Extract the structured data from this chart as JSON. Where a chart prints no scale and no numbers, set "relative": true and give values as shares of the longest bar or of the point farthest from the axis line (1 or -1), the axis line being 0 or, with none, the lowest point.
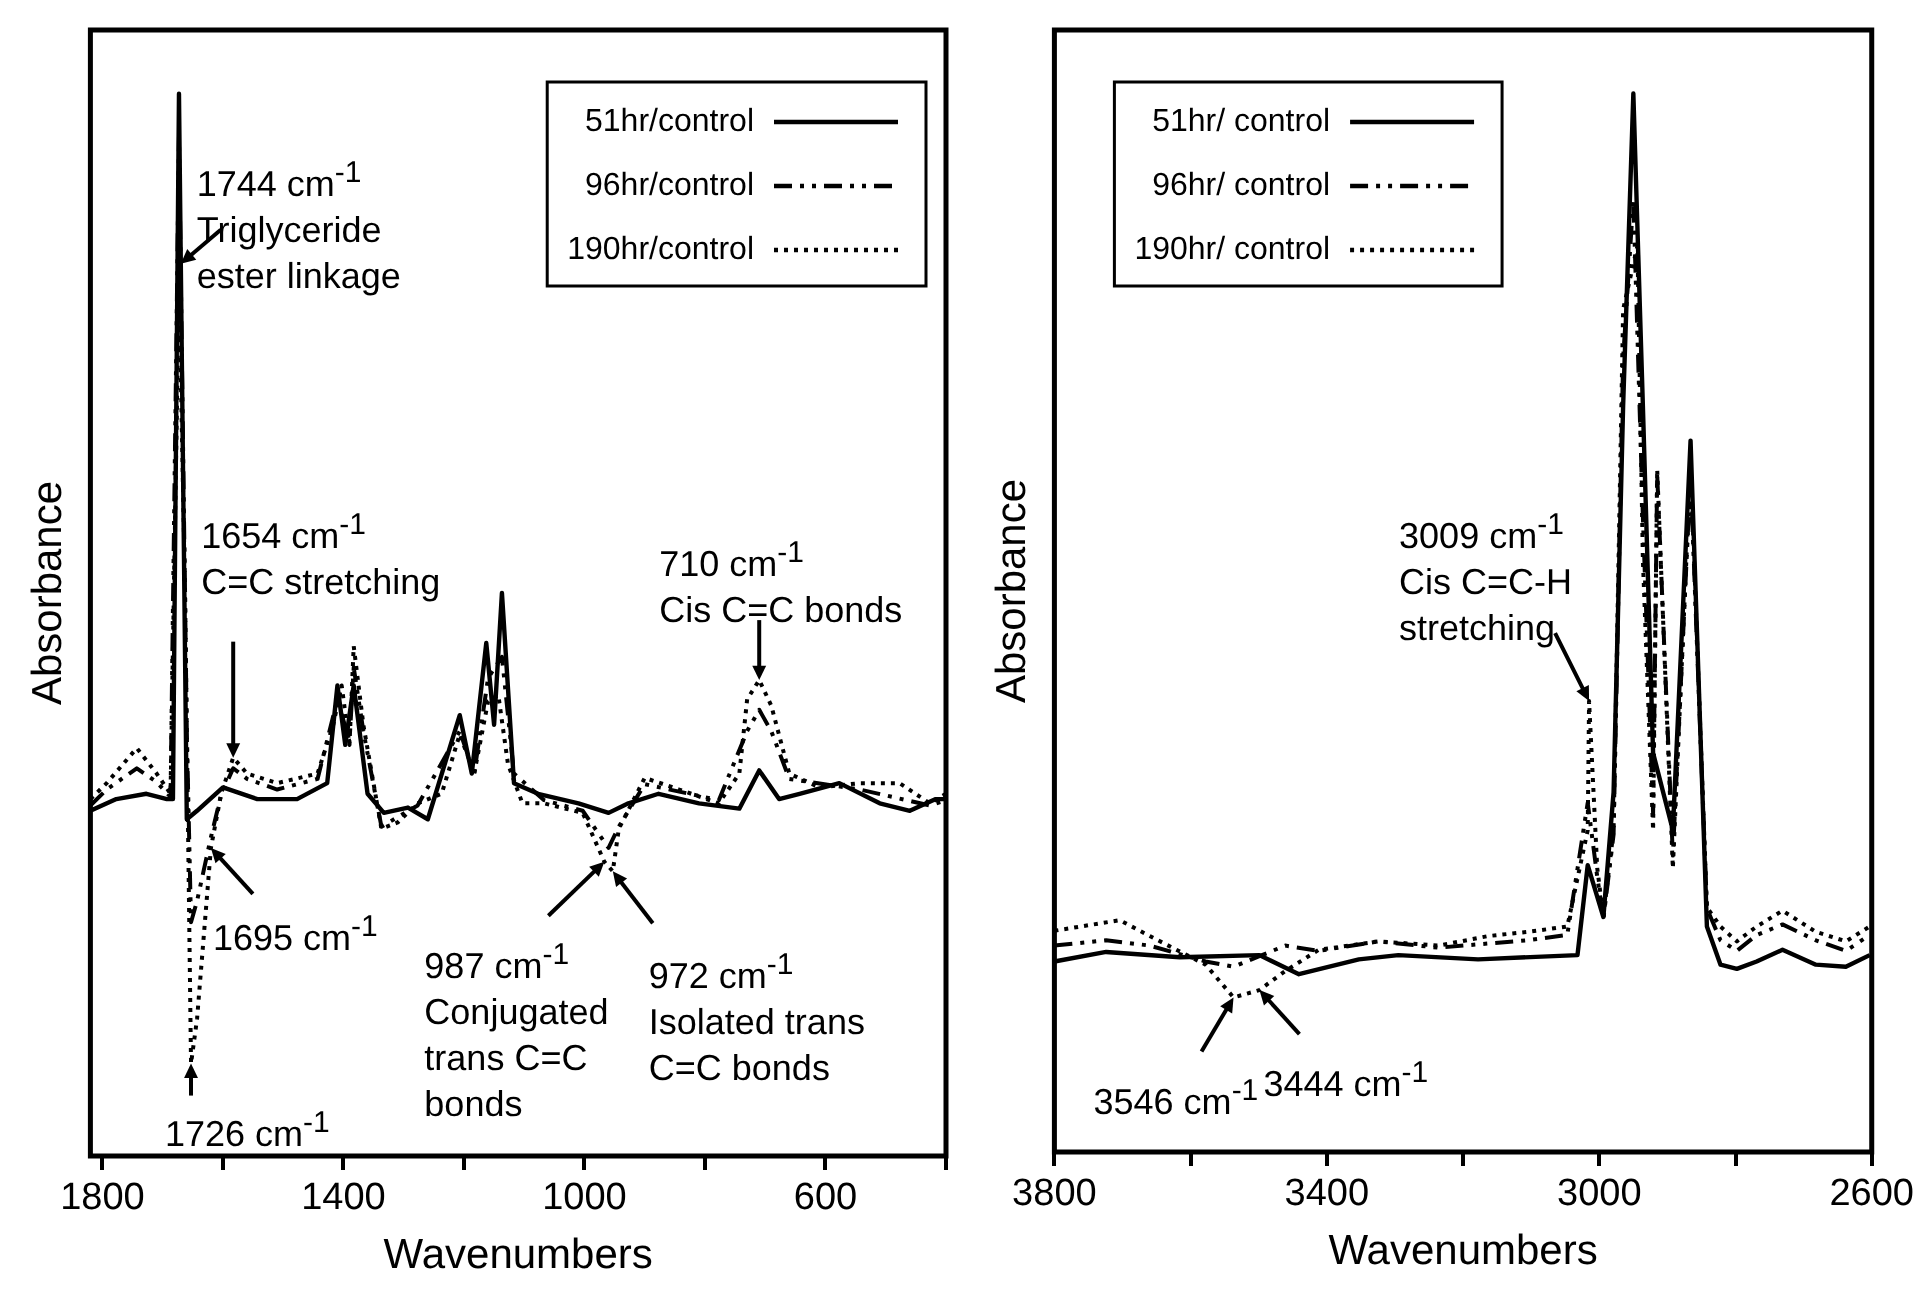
{
  "chart_data": [
    {
      "type": "line",
      "xlabel": "Wavenumbers",
      "ylabel": "Absorbance",
      "relative": true,
      "tick_labels": "x",
      "grid": false,
      "legend": "top right",
      "marker": "none",
      "xlim": [
        1820,
        400
      ],
      "xticks": [
        1800,
        {
          "value": 1600,
          "label": null
        },
        1400,
        {
          "value": 1200,
          "label": null
        },
        1000,
        {
          "value": 800,
          "label": null
        },
        600,
        {
          "value": 400,
          "label": null
        }
      ],
      "series": [
        {
          "name": "51hr/control",
          "color": "#000000",
          "line_style": "solid",
          "x": [
            1820,
            1777,
            1727,
            1693,
            1683,
            1673,
            1660,
            1643,
            1600,
            1543,
            1477,
            1427,
            1410,
            1397,
            1383,
            1360,
            1333,
            1293,
            1260,
            1207,
            1187,
            1163,
            1150,
            1137,
            1117,
            1077,
            1010,
            960,
            927,
            877,
            810,
            743,
            710,
            677,
            643,
            577,
            510,
            460,
            417,
            400
          ],
          "values": [
            0.325,
            0.336,
            0.341,
            0.336,
            0.336,
            1.0,
            0.317,
            0.325,
            0.347,
            0.336,
            0.336,
            0.351,
            0.443,
            0.387,
            0.443,
            0.341,
            0.323,
            0.328,
            0.317,
            0.415,
            0.36,
            0.483,
            0.406,
            0.53,
            0.351,
            0.341,
            0.332,
            0.323,
            0.332,
            0.341,
            0.332,
            0.327,
            0.363,
            0.336,
            0.341,
            0.351,
            0.332,
            0.325,
            0.336,
            0.336
          ]
        },
        {
          "name": "96hr/control",
          "color": "#000000",
          "line_style": "dashdot",
          "x": [
            1820,
            1793,
            1743,
            1710,
            1687,
            1673,
            1660,
            1653,
            1643,
            1620,
            1603,
            1583,
            1560,
            1510,
            1443,
            1410,
            1390,
            1383,
            1367,
            1337,
            1277,
            1207,
            1183,
            1160,
            1137,
            1117,
            1067,
            1003,
            960,
            943,
            900,
            777,
            730,
            710,
            690,
            660,
            543,
            427,
            400
          ],
          "values": [
            0.33,
            0.345,
            0.365,
            0.352,
            0.338,
            0.96,
            0.4,
            0.22,
            0.24,
            0.3,
            0.34,
            0.365,
            0.355,
            0.345,
            0.355,
            0.43,
            0.39,
            0.46,
            0.4,
            0.31,
            0.33,
            0.4,
            0.36,
            0.45,
            0.47,
            0.36,
            0.335,
            0.325,
            0.29,
            0.31,
            0.35,
            0.335,
            0.4,
            0.42,
            0.4,
            0.355,
            0.345,
            0.33,
            0.335
          ]
        },
        {
          "name": "190hr/control",
          "color": "#000000",
          "line_style": "dotted",
          "x": [
            1820,
            1793,
            1743,
            1710,
            1687,
            1673,
            1663,
            1653,
            1643,
            1620,
            1603,
            1583,
            1560,
            1510,
            1443,
            1417,
            1403,
            1390,
            1383,
            1367,
            1337,
            1310,
            1277,
            1237,
            1207,
            1183,
            1160,
            1143,
            1127,
            1103,
            1067,
            1003,
            967,
            953,
            943,
            900,
            843,
            777,
            743,
            730,
            710,
            690,
            660,
            610,
            543,
            477,
            427,
            400
          ],
          "values": [
            0.336,
            0.351,
            0.384,
            0.36,
            0.341,
            0.821,
            0.535,
            0.087,
            0.129,
            0.29,
            0.341,
            0.375,
            0.36,
            0.351,
            0.36,
            0.406,
            0.443,
            0.387,
            0.48,
            0.406,
            0.308,
            0.314,
            0.332,
            0.341,
            0.397,
            0.36,
            0.428,
            0.434,
            0.369,
            0.332,
            0.332,
            0.323,
            0.277,
            0.268,
            0.308,
            0.356,
            0.345,
            0.332,
            0.36,
            0.43,
            0.448,
            0.424,
            0.36,
            0.347,
            0.351,
            0.351,
            0.332,
            0.341
          ]
        }
      ],
      "annotations": [
        {
          "text": "1744 cm$^{-1}$ Triglyceride ester linkage",
          "x": 1670,
          "y": 0.84
        },
        {
          "text": "1654 cm$^{-1}$ C=C stretching",
          "x": 1583,
          "y": 0.375
        },
        {
          "text": "710 cm$^{-1}$ Cis C=C bonds",
          "x": 710,
          "y": 0.448
        },
        {
          "text": "1695 cm$^{-1}$",
          "x": 1620,
          "y": 0.29
        },
        {
          "text": "1726 cm$^{-1}$",
          "x": 1653,
          "y": 0.087
        },
        {
          "text": "987 cm$^{-1}$ Conjugated trans C=C bonds",
          "x": 967,
          "y": 0.277
        },
        {
          "text": "972 cm$^{-1}$ Isolated trans C=C bonds",
          "x": 953,
          "y": 0.268
        }
      ]
    },
    {
      "type": "line",
      "xlabel": "Wavenumbers",
      "ylabel": "Absorbance",
      "relative": true,
      "tick_labels": "x",
      "grid": false,
      "legend": "top left",
      "marker": "none",
      "xlim": [
        3800,
        2600
      ],
      "xticks": [
        3800,
        {
          "value": 3600,
          "label": null
        },
        3400,
        {
          "value": 3200,
          "label": null
        },
        3000,
        {
          "value": 2800,
          "label": null
        },
        2600
      ],
      "series": [
        {
          "name": "51hr/ control",
          "color": "#000000",
          "line_style": "solid",
          "x": [
            3800,
            3724,
            3616,
            3499,
            3441,
            3353,
            3295,
            3178,
            3032,
            3017,
            2994,
            2979,
            2965,
            2950,
            2936,
            2921,
            2892,
            2866,
            2842,
            2822,
            2798,
            2769,
            2731,
            2682,
            2638,
            2603
          ],
          "values": [
            0.18,
            0.189,
            0.184,
            0.186,
            0.168,
            0.182,
            0.186,
            0.182,
            0.186,
            0.271,
            0.222,
            0.34,
            0.705,
            1.0,
            0.705,
            0.377,
            0.304,
            0.672,
            0.213,
            0.177,
            0.173,
            0.18,
            0.191,
            0.177,
            0.175,
            0.186
          ]
        },
        {
          "name": "96hr/ control",
          "color": "#000000",
          "line_style": "dashdot",
          "x": [
            3800,
            3724,
            3660,
            3578,
            3537,
            3499,
            3461,
            3412,
            3324,
            3236,
            3163,
            3105,
            3047,
            3017,
            3003,
            2994,
            2979,
            2965,
            2950,
            2936,
            2921,
            2915,
            2892,
            2866,
            2842,
            2822,
            2798,
            2769,
            2731,
            2682,
            2638,
            2603
          ],
          "values": [
            0.195,
            0.2,
            0.195,
            0.18,
            0.175,
            0.185,
            0.195,
            0.19,
            0.199,
            0.193,
            0.197,
            0.2,
            0.205,
            0.33,
            0.26,
            0.22,
            0.3,
            0.75,
            0.9,
            0.6,
            0.32,
            0.64,
            0.28,
            0.64,
            0.23,
            0.2,
            0.19,
            0.205,
            0.215,
            0.2,
            0.19,
            0.205
          ]
        },
        {
          "name": "190hr/ control",
          "color": "#000000",
          "line_style": "dotted",
          "x": [
            3800,
            3704,
            3660,
            3578,
            3537,
            3499,
            3461,
            3412,
            3324,
            3236,
            3163,
            3105,
            3047,
            3017,
            3015,
            3003,
            2994,
            2979,
            2965,
            2944,
            2936,
            2921,
            2915,
            2892,
            2866,
            2842,
            2822,
            2798,
            2769,
            2731,
            2682,
            2638,
            2603
          ],
          "values": [
            0.209,
            0.219,
            0.204,
            0.177,
            0.146,
            0.153,
            0.171,
            0.191,
            0.199,
            0.195,
            0.204,
            0.208,
            0.213,
            0.304,
            0.426,
            0.268,
            0.222,
            0.304,
            0.796,
            0.856,
            0.559,
            0.304,
            0.645,
            0.268,
            0.65,
            0.231,
            0.213,
            0.199,
            0.213,
            0.228,
            0.208,
            0.199,
            0.213
          ]
        }
      ],
      "annotations": [
        {
          "text": "3009 cm$^{-1}$ Cis C=C-H stretching",
          "x": 3015,
          "y": 0.426
        },
        {
          "text": "3546 cm$^{-1}$",
          "x": 3537,
          "y": 0.146
        },
        {
          "text": "3444 cm$^{-1}$",
          "x": 3499,
          "y": 0.153
        }
      ]
    }
  ]
}
